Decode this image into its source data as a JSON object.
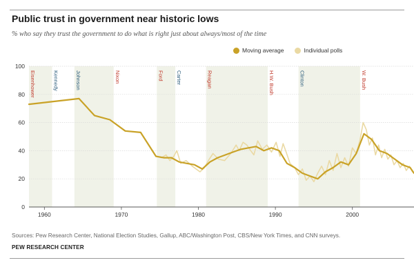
{
  "header": {
    "title": "Public trust in government near historic lows",
    "subtitle": "% who say they trust the government to do what is right just about always/most of the time"
  },
  "legend": {
    "moving_average": "Moving average",
    "individual_polls": "Individual polls"
  },
  "footer": {
    "source": "Sources: Pew Research Center, National Election Studies, Gallup, ABC/Washington Post, CBS/New York Times, and CNN surveys.",
    "credit": "PEW RESEARCH CENTER"
  },
  "colors": {
    "moving_average": "#c9a227",
    "individual_polls": "#ead9a3",
    "shade": "#f0f2e8",
    "republican": "#c0392b",
    "democrat": "#2c5d7c"
  },
  "chart_data": {
    "type": "line",
    "title": "Public trust in government near historic lows",
    "subtitle": "% who say they trust the government to do what is right just about always/most of the time",
    "xlabel": "",
    "ylabel": "",
    "xlim": [
      1958,
      2008
    ],
    "ylim": [
      0,
      100
    ],
    "x_ticks": [
      1960,
      1970,
      1980,
      1990,
      2000
    ],
    "y_ticks": [
      0,
      20,
      40,
      60,
      80,
      100
    ],
    "grid": "horizontal",
    "legend_position": "top-right",
    "presidents": [
      {
        "name": "Eisenhower",
        "start": 1958,
        "end": 1961,
        "party": "R",
        "shaded": true
      },
      {
        "name": "Kennedy",
        "start": 1961,
        "end": 1963.9,
        "party": "D",
        "shaded": false
      },
      {
        "name": "Johnson",
        "start": 1963.9,
        "end": 1969,
        "party": "D",
        "shaded": true
      },
      {
        "name": "Nixon",
        "start": 1969,
        "end": 1974.6,
        "party": "R",
        "shaded": false
      },
      {
        "name": "Ford",
        "start": 1974.6,
        "end": 1977,
        "party": "R",
        "shaded": true
      },
      {
        "name": "Carter",
        "start": 1977,
        "end": 1981,
        "party": "D",
        "shaded": false
      },
      {
        "name": "Reagan",
        "start": 1981,
        "end": 1989,
        "party": "R",
        "shaded": true
      },
      {
        "name": "H.W. Bush",
        "start": 1989,
        "end": 1993,
        "party": "R",
        "shaded": false
      },
      {
        "name": "Clinton",
        "start": 1993,
        "end": 2001,
        "party": "D",
        "shaded": true
      },
      {
        "name": "W. Bush",
        "start": 2001,
        "end": 2008,
        "party": "R",
        "shaded": false
      }
    ],
    "series": [
      {
        "name": "Moving average",
        "x": [
          1958,
          1964.5,
          1966.5,
          1968.5,
          1970.5,
          1972.5,
          1974.5,
          1975.5,
          1976.5,
          1977.5,
          1978.5,
          1979.5,
          1980.5,
          1981.5,
          1982.5,
          1983.5,
          1984.5,
          1985.5,
          1986.5,
          1987.5,
          1988.5,
          1989.5,
          1990.5,
          1991.5,
          1992.5,
          1993.5,
          1994.5,
          1995.5,
          1996.5,
          1997.5,
          1998.5,
          1999.5,
          2000.5,
          2001.5,
          2002.5,
          2003.5,
          2004.5,
          2005.5,
          2006.5,
          2007.5,
          2008
        ],
        "y": [
          73,
          77,
          65,
          62,
          54,
          53,
          36,
          35,
          35,
          32,
          31,
          30,
          27,
          32,
          35,
          37,
          39,
          41,
          42,
          43,
          40,
          42,
          40,
          31,
          28,
          24,
          22,
          20,
          25,
          28,
          32,
          30,
          38,
          52,
          48,
          40,
          38,
          34,
          30,
          28,
          24
        ]
      },
      {
        "name": "Individual polls",
        "x": [
          1958,
          1964.5,
          1966.5,
          1968.5,
          1970.5,
          1972.5,
          1974.5,
          1975.2,
          1975.8,
          1976.3,
          1976.8,
          1977.2,
          1977.7,
          1978.4,
          1979.2,
          1980.2,
          1980.8,
          1981.3,
          1981.9,
          1982.6,
          1983.4,
          1984.2,
          1984.9,
          1985.3,
          1985.8,
          1986.3,
          1986.8,
          1987.2,
          1987.7,
          1988.3,
          1988.9,
          1989.5,
          1990.1,
          1990.6,
          1991.0,
          1991.4,
          1991.9,
          1992.5,
          1993.0,
          1993.5,
          1994.0,
          1994.5,
          1995.0,
          1995.5,
          1996.0,
          1996.5,
          1997.0,
          1997.5,
          1998.0,
          1998.5,
          1999.0,
          1999.5,
          2000.0,
          2000.5,
          2001.0,
          2001.4,
          2001.8,
          2002.2,
          2002.6,
          2003.0,
          2003.4,
          2003.8,
          2004.2,
          2004.6,
          2005.0,
          2005.4,
          2005.8,
          2006.2,
          2006.6,
          2007.0,
          2007.4,
          2007.8
        ],
        "y": [
          73,
          77,
          65,
          62,
          54,
          53,
          36,
          35,
          37,
          33,
          36,
          40,
          31,
          33,
          29,
          25,
          28,
          33,
          38,
          34,
          33,
          38,
          44,
          40,
          46,
          44,
          40,
          37,
          47,
          41,
          44,
          39,
          46,
          36,
          45,
          39,
          31,
          28,
          23,
          27,
          19,
          22,
          18,
          24,
          29,
          23,
          33,
          26,
          38,
          28,
          35,
          29,
          42,
          38,
          48,
          60,
          55,
          44,
          49,
          37,
          44,
          35,
          41,
          34,
          37,
          30,
          33,
          28,
          31,
          26,
          29,
          25
        ]
      }
    ]
  }
}
